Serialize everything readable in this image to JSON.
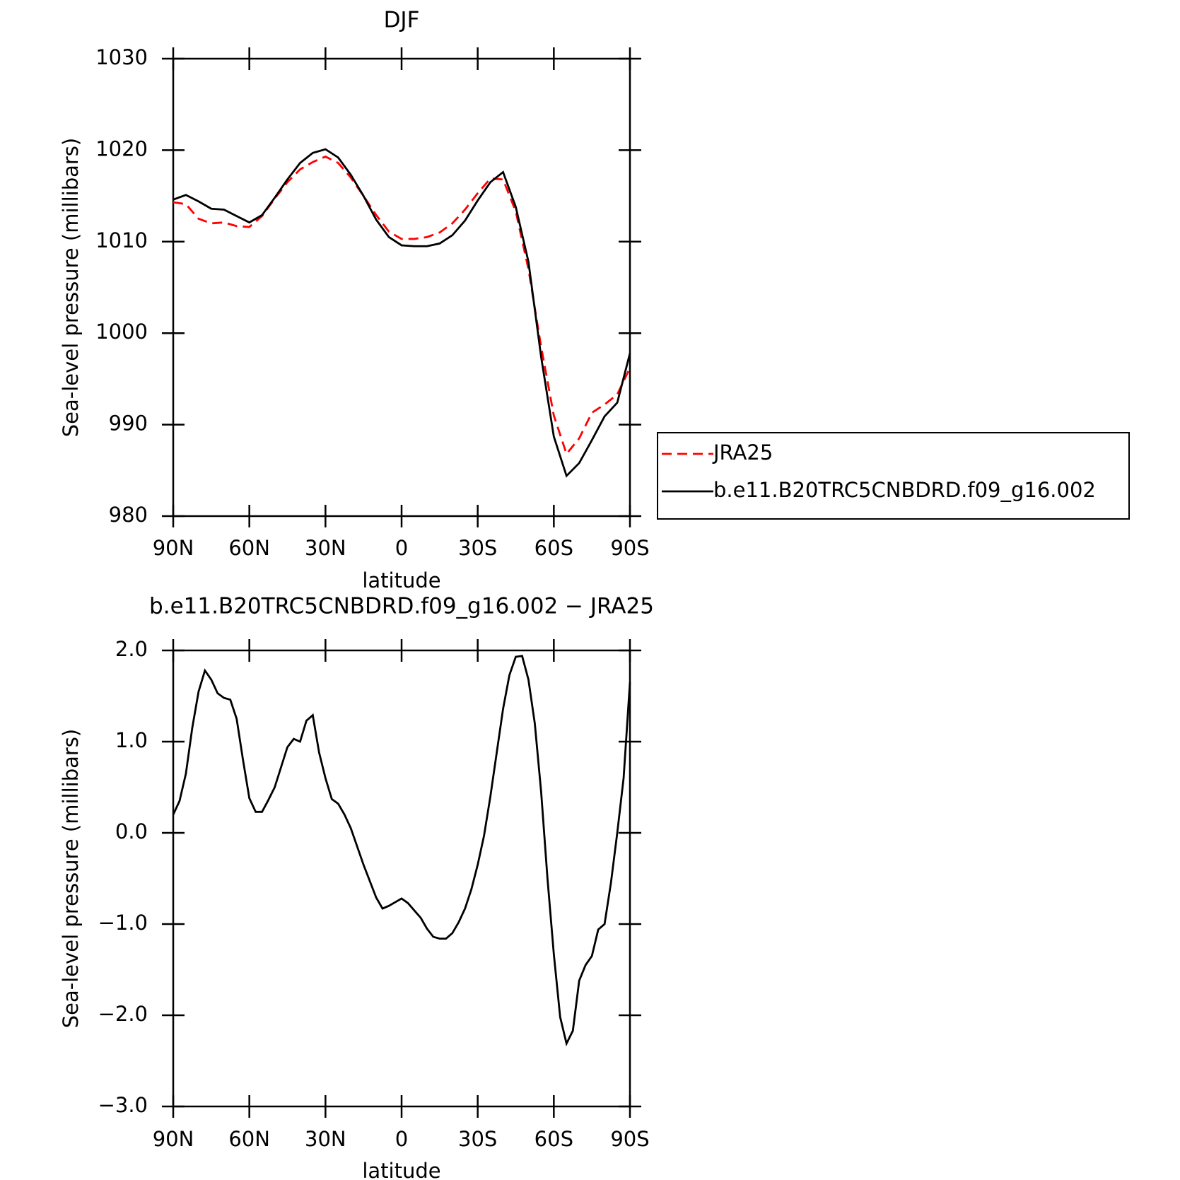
{
  "chart_data": [
    {
      "type": "line",
      "title": "DJF",
      "xlabel": "latitude",
      "ylabel": "Sea-level pressure (millibars)",
      "x": [
        90,
        85,
        80,
        75,
        70,
        65,
        60,
        55,
        50,
        45,
        40,
        35,
        30,
        25,
        20,
        15,
        10,
        5,
        0,
        -5,
        -10,
        -15,
        -20,
        -25,
        -30,
        -35,
        -40,
        -45,
        -50,
        -55,
        -60,
        -65,
        -70,
        -75,
        -80,
        -85,
        -90
      ],
      "series": [
        {
          "name": "JRA25",
          "color": "#ff0000",
          "style": "dashed",
          "values": [
            1014.3,
            1014.1,
            1012.5,
            1012.0,
            1012.1,
            1011.7,
            1011.6,
            1012.8,
            1014.7,
            1016.5,
            1017.9,
            1018.7,
            1019.3,
            1018.6,
            1017.0,
            1015.0,
            1012.9,
            1011.1,
            1010.3,
            1010.3,
            1010.5,
            1011.0,
            1012.0,
            1013.5,
            1015.3,
            1016.9,
            1016.8,
            1013.3,
            1007.0,
            998.5,
            991.0,
            986.8,
            988.5,
            991.3,
            992.2,
            993.3,
            996.2
          ]
        },
        {
          "name": "b.e11.B20TRC5CNBDRD.f09_g16.002",
          "color": "#000000",
          "style": "solid",
          "values": [
            1014.6,
            1015.1,
            1014.4,
            1013.6,
            1013.5,
            1012.8,
            1012.1,
            1012.9,
            1014.8,
            1016.8,
            1018.6,
            1019.7,
            1020.1,
            1019.2,
            1017.3,
            1015.0,
            1012.4,
            1010.5,
            1009.6,
            1009.5,
            1009.5,
            1009.8,
            1010.7,
            1012.3,
            1014.5,
            1016.5,
            1017.6,
            1013.8,
            1007.8,
            997.4,
            988.7,
            984.4,
            985.8,
            988.3,
            990.9,
            992.4,
            997.8
          ]
        }
      ],
      "xlim": [
        90,
        -90
      ],
      "xticks": [
        {
          "value": 90,
          "label": "90N"
        },
        {
          "value": 60,
          "label": "60N"
        },
        {
          "value": 30,
          "label": "30N"
        },
        0,
        {
          "value": -30,
          "label": "30S"
        },
        {
          "value": -60,
          "label": "60S"
        },
        {
          "value": -90,
          "label": "90S"
        }
      ],
      "ylim": [
        980,
        1030
      ],
      "yticks": [
        980,
        990,
        1000,
        1010,
        1020,
        1030
      ],
      "legend": "right"
    },
    {
      "type": "line",
      "title": "b.e11.B20TRC5CNBDRD.f09_g16.002 − JRA25",
      "xlabel": "latitude",
      "ylabel": "Sea-level pressure (millibars)",
      "x": [
        90,
        87.5,
        85,
        82.5,
        80,
        77.5,
        75,
        72.5,
        70,
        67.5,
        65,
        62.5,
        60,
        57.5,
        55,
        52.5,
        50,
        47.5,
        45,
        42.5,
        40,
        37.5,
        35,
        32.5,
        30,
        27.5,
        25,
        22.5,
        20,
        17.5,
        15,
        12.5,
        10,
        7.5,
        5,
        2.5,
        0,
        -2.5,
        -5,
        -7.5,
        -10,
        -12.5,
        -15,
        -17.5,
        -20,
        -22.5,
        -25,
        -27.5,
        -30,
        -32.5,
        -35,
        -37.5,
        -40,
        -42.5,
        -45,
        -47.5,
        -50,
        -52.5,
        -55,
        -57.5,
        -60,
        -62.5,
        -65,
        -67.5,
        -70,
        -72.5,
        -75,
        -77.5,
        -80,
        -82.5,
        -85,
        -87.5,
        -90
      ],
      "series": [
        {
          "name": "b.e11.B20TRC5CNBDRD.f09_g16.002 − JRA25",
          "color": "#000000",
          "style": "solid",
          "values": [
            0.2,
            0.35,
            0.65,
            1.15,
            1.55,
            1.78,
            1.68,
            1.53,
            1.48,
            1.46,
            1.25,
            0.8,
            0.38,
            0.23,
            0.23,
            0.36,
            0.5,
            0.72,
            0.94,
            1.03,
            1.0,
            1.23,
            1.29,
            0.88,
            0.6,
            0.37,
            0.32,
            0.2,
            0.05,
            -0.15,
            -0.35,
            -0.53,
            -0.71,
            -0.83,
            -0.8,
            -0.76,
            -0.72,
            -0.77,
            -0.85,
            -0.93,
            -1.05,
            -1.14,
            -1.16,
            -1.16,
            -1.1,
            -0.98,
            -0.83,
            -0.62,
            -0.35,
            -0.03,
            0.4,
            0.88,
            1.36,
            1.73,
            1.93,
            1.94,
            1.68,
            1.2,
            0.45,
            -0.5,
            -1.33,
            -2.02,
            -2.31,
            -2.17,
            -1.62,
            -1.45,
            -1.35,
            -1.06,
            -1.0,
            -0.55,
            0.0,
            0.6,
            1.65
          ]
        }
      ],
      "xlim": [
        90,
        -90
      ],
      "xticks": [
        {
          "value": 90,
          "label": "90N"
        },
        {
          "value": 60,
          "label": "60N"
        },
        {
          "value": 30,
          "label": "30N"
        },
        0,
        {
          "value": -30,
          "label": "30S"
        },
        {
          "value": -60,
          "label": "60S"
        },
        {
          "value": -90,
          "label": "90S"
        }
      ],
      "ylim": [
        -3,
        2
      ],
      "yticks": [
        {
          "value": -3,
          "label": "−3.0"
        },
        {
          "value": -2,
          "label": "−2.0"
        },
        {
          "value": -1,
          "label": "−1.0"
        },
        {
          "value": 0,
          "label": "0.0"
        },
        {
          "value": 1,
          "label": "1.0"
        },
        {
          "value": 2,
          "label": "2.0"
        }
      ]
    }
  ]
}
